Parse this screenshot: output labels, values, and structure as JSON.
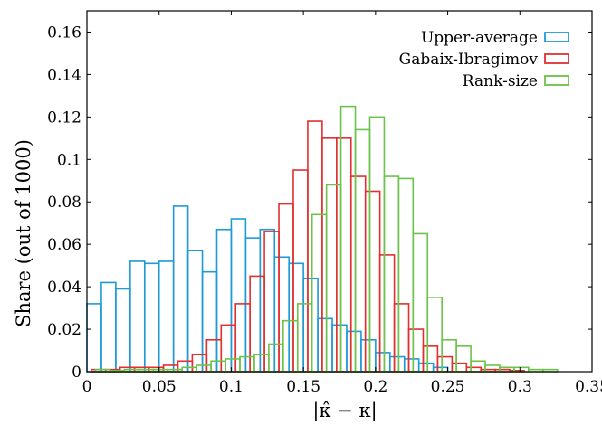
{
  "chart_data": {
    "type": "bar",
    "title": "",
    "xlabel": "|κ̂ − κ|",
    "ylabel": "Share (out of 1000)",
    "xlim": [
      0,
      0.35
    ],
    "ylim": [
      0,
      0.17
    ],
    "x_ticks": [
      0,
      0.05,
      0.1,
      0.15,
      0.2,
      0.25,
      0.3,
      0.35
    ],
    "x_tick_labels": [
      "0",
      "0.05",
      "0.1",
      "0.15",
      "0.2",
      "0.25",
      "0.3",
      "0.35"
    ],
    "y_ticks": [
      0,
      0.02,
      0.04,
      0.06,
      0.08,
      0.1,
      0.12,
      0.14,
      0.16
    ],
    "y_tick_labels": [
      "0",
      "0.02",
      "0.04",
      "0.06",
      "0.08",
      "0.1",
      "0.12",
      "0.14",
      "0.16"
    ],
    "grid": false,
    "legend_position": "top-right",
    "bin_width": 0.01,
    "series": [
      {
        "name": "Upper-average",
        "color": "#1f9ad6",
        "bins": [
          [
            0.0,
            0.032
          ],
          [
            0.01,
            0.042
          ],
          [
            0.02,
            0.039
          ],
          [
            0.03,
            0.052
          ],
          [
            0.04,
            0.051
          ],
          [
            0.05,
            0.052
          ],
          [
            0.06,
            0.078
          ],
          [
            0.07,
            0.057
          ],
          [
            0.08,
            0.047
          ],
          [
            0.09,
            0.067
          ],
          [
            0.1,
            0.072
          ],
          [
            0.11,
            0.063
          ],
          [
            0.12,
            0.067
          ],
          [
            0.13,
            0.054
          ],
          [
            0.14,
            0.051
          ],
          [
            0.15,
            0.044
          ],
          [
            0.16,
            0.025
          ],
          [
            0.17,
            0.022
          ],
          [
            0.18,
            0.019
          ],
          [
            0.19,
            0.015
          ],
          [
            0.2,
            0.009
          ],
          [
            0.21,
            0.007
          ],
          [
            0.22,
            0.006
          ],
          [
            0.23,
            0.004
          ],
          [
            0.24,
            0.002
          ]
        ]
      },
      {
        "name": "Gabaix-Ibragimov",
        "color": "#e03030",
        "bins": [
          [
            0.003,
            0.001
          ],
          [
            0.013,
            0.001
          ],
          [
            0.023,
            0.002
          ],
          [
            0.033,
            0.002
          ],
          [
            0.043,
            0.002
          ],
          [
            0.053,
            0.003
          ],
          [
            0.063,
            0.005
          ],
          [
            0.073,
            0.008
          ],
          [
            0.083,
            0.015
          ],
          [
            0.093,
            0.022
          ],
          [
            0.103,
            0.032
          ],
          [
            0.113,
            0.045
          ],
          [
            0.123,
            0.066
          ],
          [
            0.133,
            0.079
          ],
          [
            0.143,
            0.095
          ],
          [
            0.153,
            0.118
          ],
          [
            0.163,
            0.11
          ],
          [
            0.173,
            0.11
          ],
          [
            0.183,
            0.092
          ],
          [
            0.193,
            0.085
          ],
          [
            0.203,
            0.055
          ],
          [
            0.213,
            0.032
          ],
          [
            0.223,
            0.02
          ],
          [
            0.233,
            0.012
          ],
          [
            0.243,
            0.007
          ],
          [
            0.253,
            0.004
          ],
          [
            0.263,
            0.002
          ],
          [
            0.273,
            0.001
          ],
          [
            0.283,
            0.001
          ],
          [
            0.293,
            0.0005
          ]
        ]
      },
      {
        "name": "Rank-size",
        "color": "#6cc24a",
        "bins": [
          [
            0.006,
            0.001
          ],
          [
            0.016,
            0.0005
          ],
          [
            0.026,
            0.001
          ],
          [
            0.036,
            0.001
          ],
          [
            0.046,
            0.001
          ],
          [
            0.056,
            0.001
          ],
          [
            0.066,
            0.002
          ],
          [
            0.076,
            0.003
          ],
          [
            0.086,
            0.005
          ],
          [
            0.096,
            0.006
          ],
          [
            0.106,
            0.007
          ],
          [
            0.116,
            0.008
          ],
          [
            0.126,
            0.013
          ],
          [
            0.136,
            0.024
          ],
          [
            0.146,
            0.032
          ],
          [
            0.156,
            0.074
          ],
          [
            0.166,
            0.088
          ],
          [
            0.176,
            0.125
          ],
          [
            0.186,
            0.114
          ],
          [
            0.196,
            0.12
          ],
          [
            0.206,
            0.092
          ],
          [
            0.216,
            0.091
          ],
          [
            0.226,
            0.065
          ],
          [
            0.236,
            0.035
          ],
          [
            0.246,
            0.015
          ],
          [
            0.256,
            0.012
          ],
          [
            0.266,
            0.005
          ],
          [
            0.276,
            0.003
          ],
          [
            0.286,
            0.002
          ],
          [
            0.296,
            0.002
          ],
          [
            0.306,
            0.001
          ],
          [
            0.316,
            0.001
          ]
        ]
      }
    ]
  }
}
